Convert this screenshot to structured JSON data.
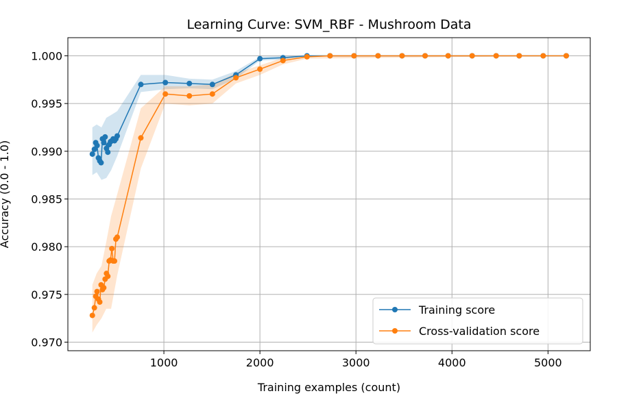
{
  "chart_data": {
    "type": "line",
    "title": "Learning Curve: SVM_RBF - Mushroom Data",
    "xlabel": "Training examples (count)",
    "ylabel": "Accuracy (0.0 - 1.0)",
    "xlim": [
      0,
      5440
    ],
    "ylim": [
      0.9691,
      1.0019
    ],
    "xticks": [
      1000,
      2000,
      3000,
      4000,
      5000
    ],
    "yticks": [
      0.97,
      0.975,
      0.98,
      0.985,
      0.99,
      0.995,
      1.0
    ],
    "ytick_labels": [
      "0.970",
      "0.975",
      "0.980",
      "0.985",
      "0.990",
      "0.995",
      "1.000"
    ],
    "grid": true,
    "legend_position": "lower-right",
    "series": [
      {
        "name": "Training score",
        "color": "#1f77b4",
        "points": [
          [
            255,
            0.9897
          ],
          [
            276,
            0.9902
          ],
          [
            290,
            0.9909
          ],
          [
            304,
            0.9906
          ],
          [
            318,
            0.9893
          ],
          [
            332,
            0.989
          ],
          [
            346,
            0.9888
          ],
          [
            360,
            0.9913
          ],
          [
            374,
            0.9909
          ],
          [
            388,
            0.9915
          ],
          [
            402,
            0.9903
          ],
          [
            416,
            0.9899
          ],
          [
            430,
            0.9907
          ],
          [
            444,
            0.991
          ],
          [
            458,
            0.9911
          ],
          [
            472,
            0.9913
          ],
          [
            486,
            0.9911
          ],
          [
            500,
            0.9913
          ],
          [
            514,
            0.9916
          ],
          [
            760,
            0.997
          ],
          [
            1015,
            0.9972
          ],
          [
            1265,
            0.9971
          ],
          [
            1505,
            0.997
          ],
          [
            1750,
            0.998
          ],
          [
            2000,
            0.9997
          ],
          [
            2240,
            0.9998
          ],
          [
            2490,
            1.0
          ],
          [
            2730,
            1.0
          ],
          [
            2980,
            1.0
          ],
          [
            3230,
            1.0
          ],
          [
            3480,
            1.0
          ],
          [
            3720,
            1.0
          ],
          [
            3960,
            1.0
          ],
          [
            4210,
            1.0
          ],
          [
            4460,
            1.0
          ],
          [
            4700,
            1.0
          ],
          [
            4950,
            1.0
          ],
          [
            5190,
            1.0
          ]
        ],
        "band_upper": [
          [
            255,
            0.9925
          ],
          [
            300,
            0.9928
          ],
          [
            350,
            0.9925
          ],
          [
            400,
            0.9935
          ],
          [
            450,
            0.9938
          ],
          [
            514,
            0.9942
          ],
          [
            760,
            0.998
          ],
          [
            1015,
            0.998
          ],
          [
            1265,
            0.9976
          ],
          [
            1505,
            0.9975
          ],
          [
            1750,
            0.9984
          ],
          [
            2000,
            0.9999
          ],
          [
            2240,
            1.0
          ],
          [
            2490,
            1.0
          ],
          [
            5190,
            1.0
          ]
        ],
        "band_lower": [
          [
            255,
            0.9875
          ],
          [
            300,
            0.9878
          ],
          [
            350,
            0.987
          ],
          [
            400,
            0.9872
          ],
          [
            450,
            0.988
          ],
          [
            514,
            0.9895
          ],
          [
            760,
            0.9962
          ],
          [
            1015,
            0.9965
          ],
          [
            1265,
            0.9966
          ],
          [
            1505,
            0.9965
          ],
          [
            1750,
            0.9976
          ],
          [
            2000,
            0.9995
          ],
          [
            2240,
            0.9996
          ],
          [
            2490,
            1.0
          ],
          [
            5190,
            1.0
          ]
        ]
      },
      {
        "name": "Cross-validation score",
        "color": "#ff7f0e",
        "points": [
          [
            255,
            0.9728
          ],
          [
            276,
            0.9736
          ],
          [
            290,
            0.9748
          ],
          [
            304,
            0.9753
          ],
          [
            318,
            0.9745
          ],
          [
            332,
            0.9742
          ],
          [
            346,
            0.976
          ],
          [
            360,
            0.9755
          ],
          [
            374,
            0.9757
          ],
          [
            388,
            0.9766
          ],
          [
            402,
            0.9772
          ],
          [
            416,
            0.9769
          ],
          [
            430,
            0.9785
          ],
          [
            444,
            0.9786
          ],
          [
            458,
            0.9798
          ],
          [
            472,
            0.9785
          ],
          [
            486,
            0.9785
          ],
          [
            500,
            0.9808
          ],
          [
            514,
            0.981
          ],
          [
            760,
            0.9914
          ],
          [
            1015,
            0.996
          ],
          [
            1265,
            0.9958
          ],
          [
            1505,
            0.996
          ],
          [
            1750,
            0.9977
          ],
          [
            2000,
            0.9986
          ],
          [
            2240,
            0.9995
          ],
          [
            2490,
            0.9999
          ],
          [
            2730,
            1.0
          ],
          [
            2980,
            1.0
          ],
          [
            3230,
            1.0
          ],
          [
            3480,
            1.0
          ],
          [
            3720,
            1.0
          ],
          [
            3960,
            1.0
          ],
          [
            4210,
            1.0
          ],
          [
            4460,
            1.0
          ],
          [
            4700,
            1.0
          ],
          [
            4950,
            1.0
          ],
          [
            5190,
            1.0
          ]
        ],
        "band_upper": [
          [
            255,
            0.976
          ],
          [
            300,
            0.9772
          ],
          [
            350,
            0.978
          ],
          [
            400,
            0.9805
          ],
          [
            450,
            0.9832
          ],
          [
            514,
            0.9855
          ],
          [
            760,
            0.9945
          ],
          [
            1015,
            0.9968
          ],
          [
            1265,
            0.9968
          ],
          [
            1505,
            0.997
          ],
          [
            1750,
            0.9982
          ],
          [
            2000,
            0.999
          ],
          [
            2240,
            0.9998
          ],
          [
            2490,
            1.0
          ],
          [
            5190,
            1.0
          ]
        ],
        "band_lower": [
          [
            255,
            0.971
          ],
          [
            300,
            0.9718
          ],
          [
            350,
            0.9725
          ],
          [
            400,
            0.9735
          ],
          [
            450,
            0.9735
          ],
          [
            514,
            0.977
          ],
          [
            760,
            0.9882
          ],
          [
            1015,
            0.995
          ],
          [
            1265,
            0.9948
          ],
          [
            1505,
            0.995
          ],
          [
            1750,
            0.9971
          ],
          [
            2000,
            0.998
          ],
          [
            2240,
            0.9991
          ],
          [
            2490,
            0.9997
          ],
          [
            5190,
            1.0
          ]
        ]
      }
    ]
  }
}
